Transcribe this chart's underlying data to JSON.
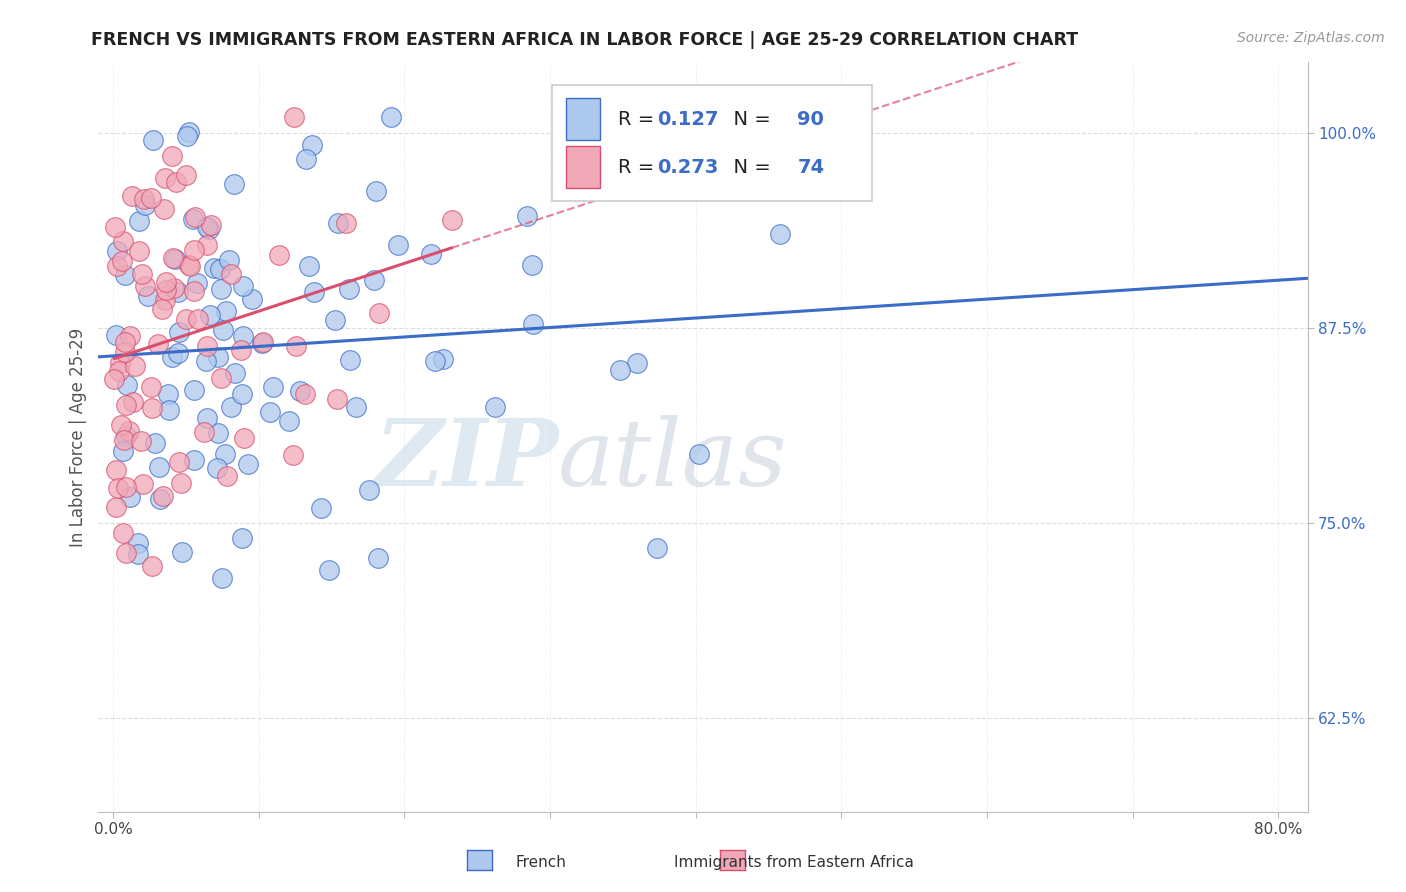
{
  "title": "FRENCH VS IMMIGRANTS FROM EASTERN AFRICA IN LABOR FORCE | AGE 25-29 CORRELATION CHART",
  "source": "Source: ZipAtlas.com",
  "ylabel": "In Labor Force | Age 25-29",
  "x_tick_labels": [
    "0.0%",
    "",
    "",
    "",
    "",
    "",
    "",
    "",
    "80.0%"
  ],
  "y_ticks_right": [
    0.625,
    0.75,
    0.875,
    1.0
  ],
  "y_tick_labels_right": [
    "62.5%",
    "75.0%",
    "87.5%",
    "100.0%"
  ],
  "xlim": [
    -0.01,
    0.82
  ],
  "ylim": [
    0.565,
    1.045
  ],
  "blue_R": 0.127,
  "blue_N": 90,
  "pink_R": 0.273,
  "pink_N": 74,
  "blue_color": "#adc8ed",
  "blue_line_color": "#3b6cc7",
  "blue_edge_color": "#3b6cc7",
  "pink_color": "#f0a8b8",
  "pink_line_color": "#d94f6e",
  "pink_edge_color": "#d94f6e",
  "legend_label_blue": "French",
  "legend_label_pink": "Immigrants from Eastern Africa",
  "watermark_zip": "ZIP",
  "watermark_atlas": "atlas",
  "watermark_zip_color": "#c5d8e8",
  "watermark_atlas_color": "#c5d0dc",
  "grid_color": "#dddddd",
  "title_fontsize": 12.5,
  "source_fontsize": 10,
  "axis_label_color": "#555555",
  "right_tick_color": "#3b6cc7"
}
